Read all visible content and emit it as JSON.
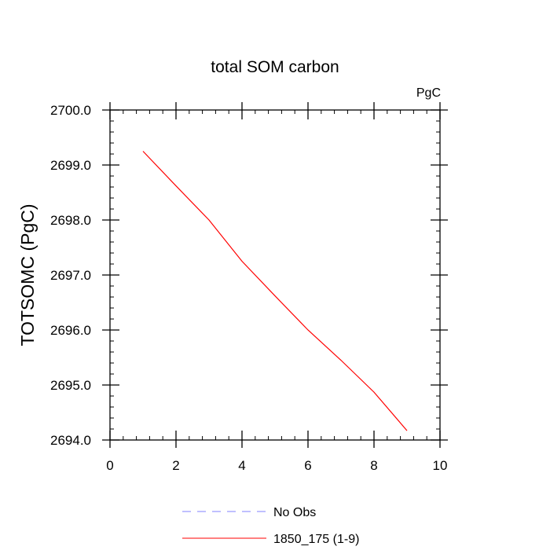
{
  "chart_data": {
    "type": "line",
    "title": "total SOM carbon",
    "units_label": "PgC",
    "ylabel": "TOTSOMC  (PgC)",
    "xlabel": "",
    "xlim": [
      0,
      10
    ],
    "ylim": [
      2694.0,
      2700.0
    ],
    "x_ticks": [
      0,
      2,
      4,
      6,
      8,
      10
    ],
    "x_tick_labels": [
      "0",
      "2",
      "4",
      "6",
      "8",
      "10"
    ],
    "x_minor_step": 0.4,
    "y_ticks": [
      2694.0,
      2695.0,
      2696.0,
      2697.0,
      2698.0,
      2699.0,
      2700.0
    ],
    "y_tick_labels": [
      "2694.0",
      "2695.0",
      "2696.0",
      "2697.0",
      "2698.0",
      "2699.0",
      "2700.0"
    ],
    "y_minor_step": 0.2,
    "grid": false,
    "legend_position": "bottom",
    "series": [
      {
        "name": "No Obs",
        "color": "#8080ff",
        "dash": "dashed",
        "x": [],
        "y": []
      },
      {
        "name": "1850_175 (1-9)",
        "color": "#ff0000",
        "dash": "solid",
        "x": [
          1,
          2,
          3,
          4,
          5,
          6,
          7,
          8,
          9
        ],
        "y": [
          2699.25,
          2698.62,
          2698.0,
          2697.25,
          2696.62,
          2696.0,
          2695.45,
          2694.87,
          2694.17
        ]
      }
    ]
  }
}
